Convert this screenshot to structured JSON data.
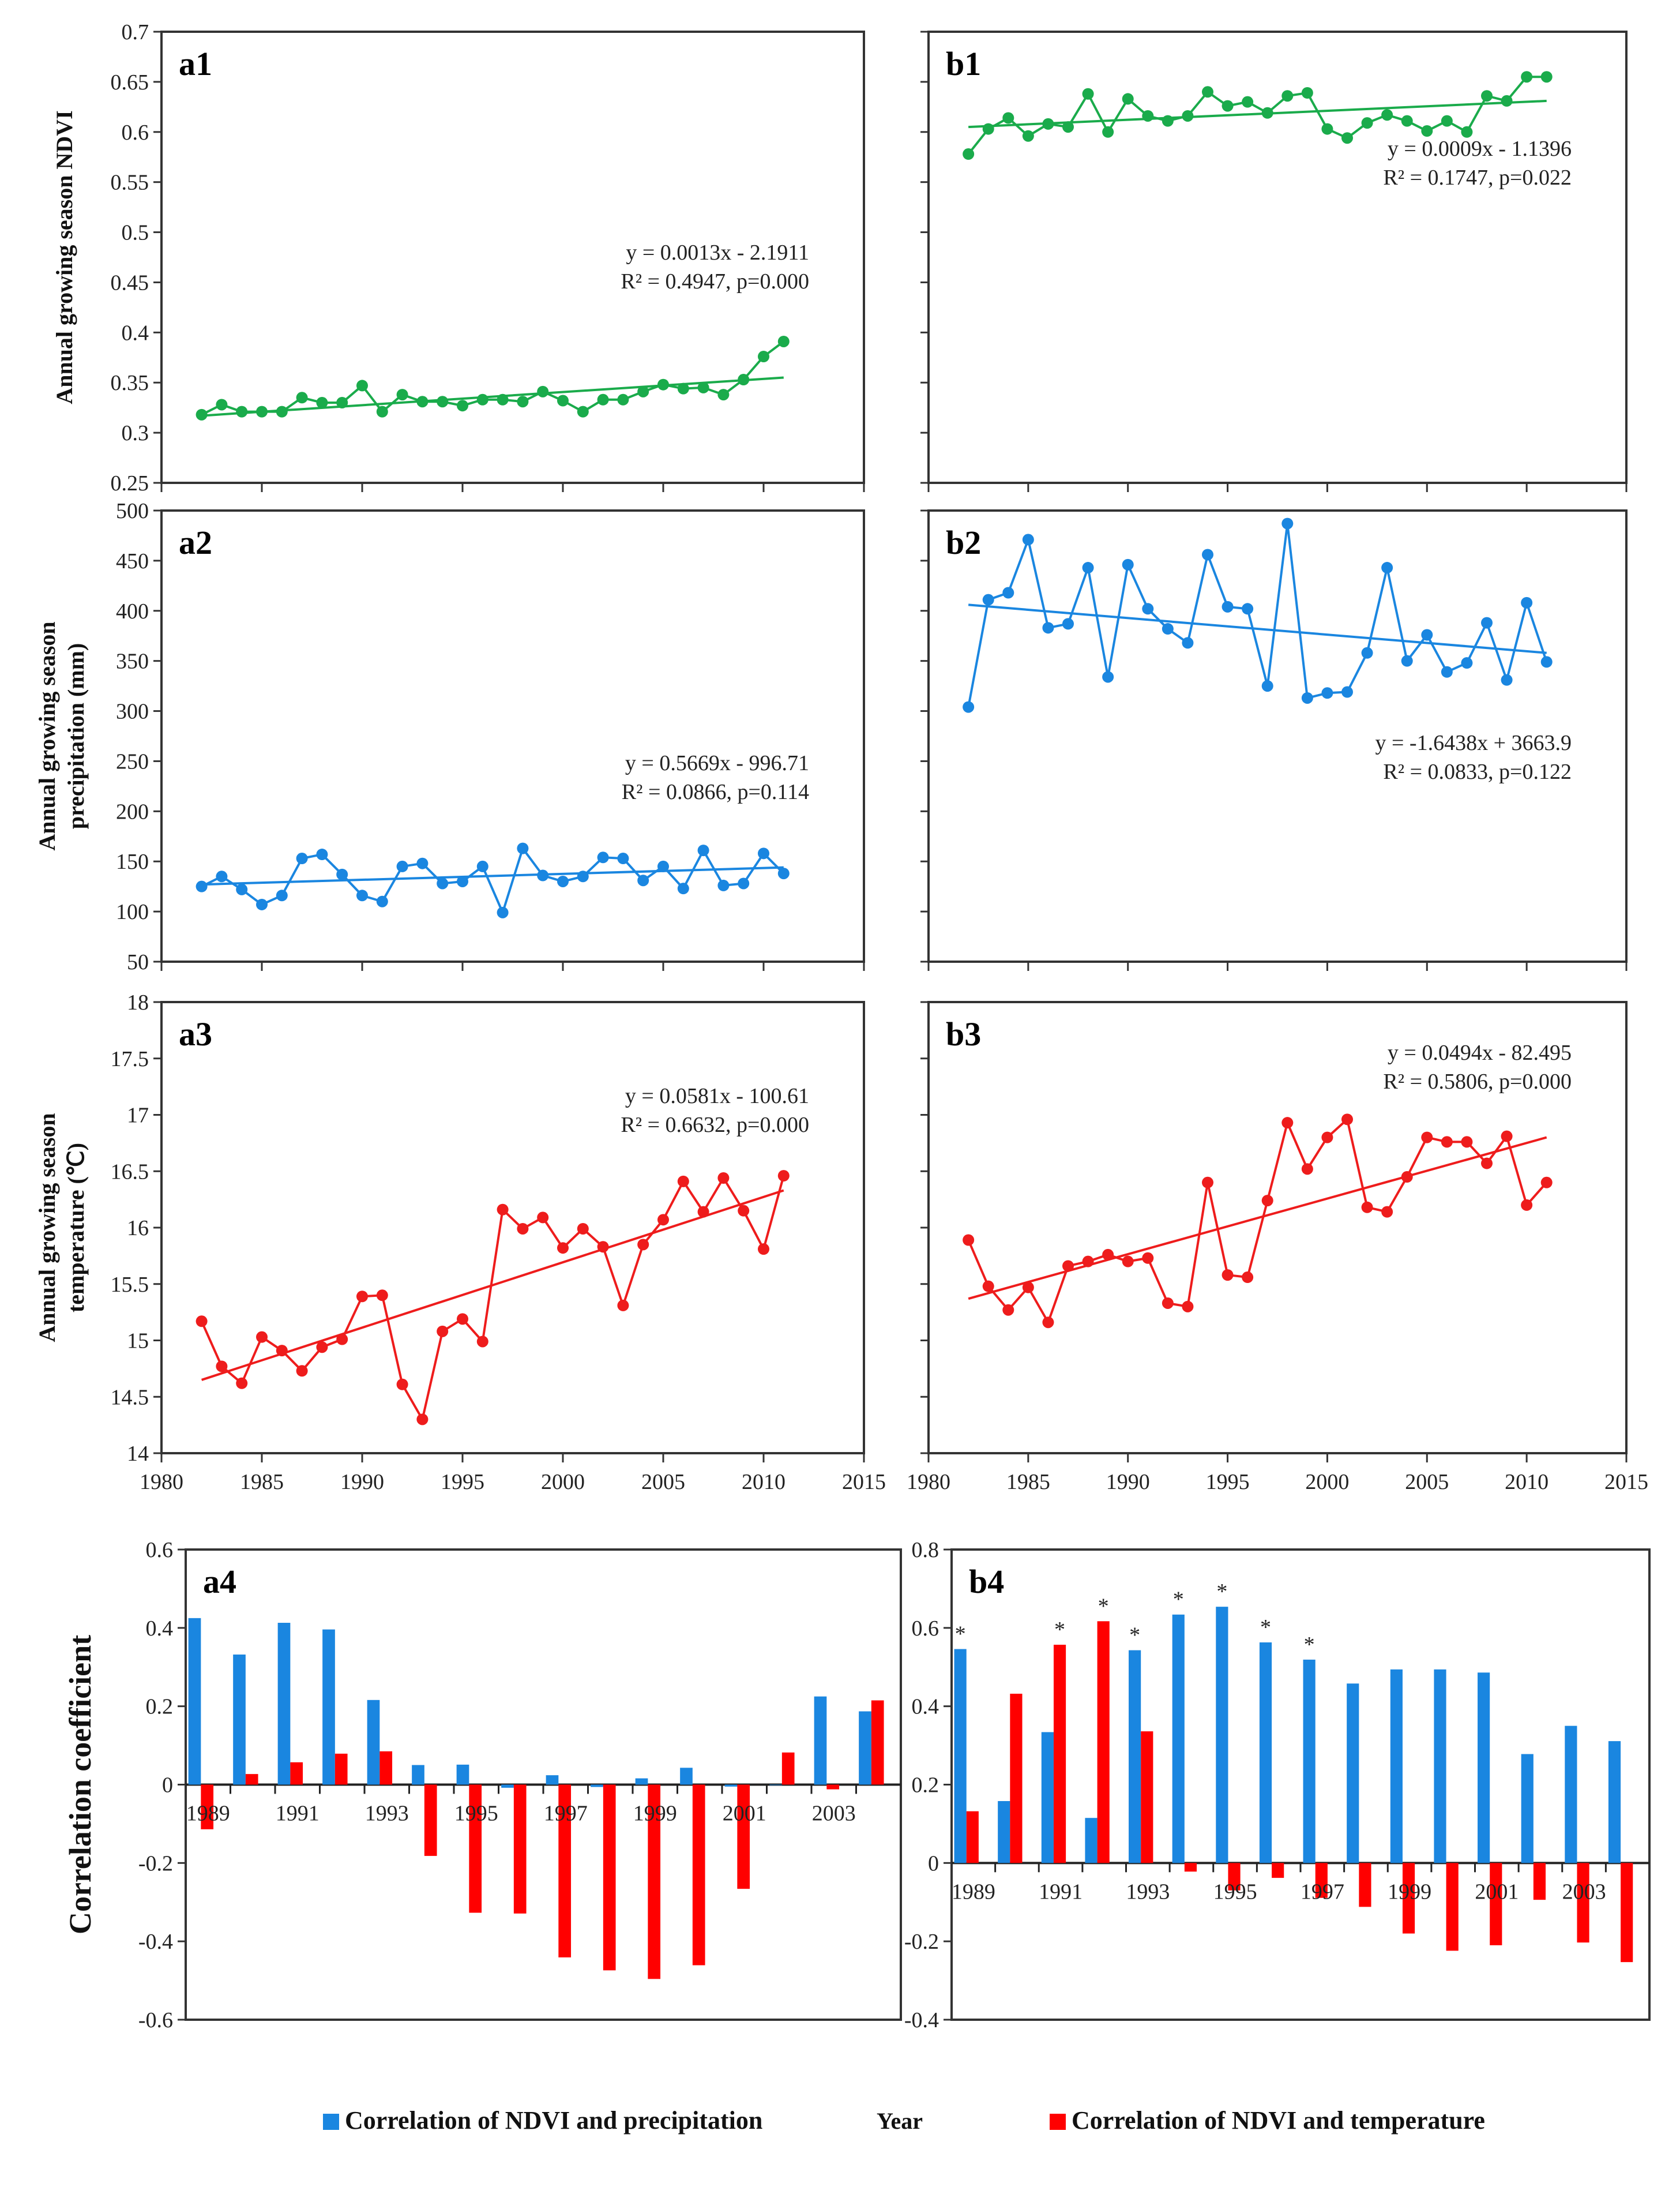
{
  "chart_data": [
    {
      "id": "a1",
      "type": "line",
      "label": "a1",
      "ylabel": "Annual growing season NDVI",
      "xlabel": "",
      "ylim": [
        0.25,
        0.7
      ],
      "yticks": [
        0.25,
        0.3,
        0.35,
        0.4,
        0.45,
        0.5,
        0.55,
        0.6,
        0.65,
        0.7
      ],
      "xlim": [
        1980,
        2015
      ],
      "xticks": [
        1980,
        1985,
        1990,
        1995,
        2000,
        2005,
        2010,
        2015
      ],
      "show_xtick_labels": false,
      "color": "#1aab4b",
      "x": [
        1982,
        1983,
        1984,
        1985,
        1986,
        1987,
        1988,
        1989,
        1990,
        1991,
        1992,
        1993,
        1994,
        1995,
        1996,
        1997,
        1998,
        1999,
        2000,
        2001,
        2002,
        2003,
        2004,
        2005,
        2006,
        2007,
        2008,
        2009,
        2010,
        2011
      ],
      "y": [
        0.318,
        0.328,
        0.321,
        0.321,
        0.321,
        0.335,
        0.33,
        0.33,
        0.347,
        0.321,
        0.338,
        0.331,
        0.331,
        0.327,
        0.333,
        0.333,
        0.331,
        0.341,
        0.332,
        0.321,
        0.333,
        0.333,
        0.341,
        0.348,
        0.344,
        0.345,
        0.338,
        0.353,
        0.376,
        0.391
      ],
      "trend": {
        "slope": 0.0013,
        "x0": 1982,
        "y0": 0.317,
        "x1": 2011,
        "y1": 0.355
      },
      "equation": "y = 0.0013x - 2.1911",
      "stats": "R² = 0.4947, p=0.000",
      "eq_pos": "right-middle"
    },
    {
      "id": "b1",
      "type": "line",
      "label": "b1",
      "ylabel": "",
      "xlabel": "",
      "ylim": [
        0.25,
        0.7
      ],
      "yticks": [
        0.25,
        0.3,
        0.35,
        0.4,
        0.45,
        0.5,
        0.55,
        0.6,
        0.65,
        0.7
      ],
      "show_ytick_labels": false,
      "xlim": [
        1980,
        2015
      ],
      "xticks": [
        1980,
        1985,
        1990,
        1995,
        2000,
        2005,
        2010,
        2015
      ],
      "show_xtick_labels": false,
      "color": "#1aab4b",
      "x": [
        1982,
        1983,
        1984,
        1985,
        1986,
        1987,
        1988,
        1989,
        1990,
        1991,
        1992,
        1993,
        1994,
        1995,
        1996,
        1997,
        1998,
        1999,
        2000,
        2001,
        2002,
        2003,
        2004,
        2005,
        2006,
        2007,
        2008,
        2009,
        2010,
        2011
      ],
      "y": [
        0.578,
        0.603,
        0.614,
        0.596,
        0.608,
        0.605,
        0.638,
        0.6,
        0.633,
        0.616,
        0.611,
        0.616,
        0.64,
        0.626,
        0.63,
        0.619,
        0.636,
        0.639,
        0.603,
        0.594,
        0.609,
        0.617,
        0.611,
        0.601,
        0.611,
        0.6,
        0.636,
        0.631,
        0.655,
        0.655
      ],
      "trend": {
        "slope": 0.0009,
        "x0": 1982,
        "y0": 0.605,
        "x1": 2011,
        "y1": 0.631
      },
      "equation": "y = 0.0009x - 1.1396",
      "stats": "R² = 0.1747, p=0.022",
      "eq_pos": "right-upper"
    },
    {
      "id": "a2",
      "type": "line",
      "label": "a2",
      "ylabel": "Annual growing season precipitation (mm)",
      "xlabel": "",
      "ylim": [
        50,
        500
      ],
      "yticks": [
        50,
        100,
        150,
        200,
        250,
        300,
        350,
        400,
        450,
        500
      ],
      "xlim": [
        1980,
        2015
      ],
      "xticks": [
        1980,
        1985,
        1990,
        1995,
        2000,
        2005,
        2010,
        2015
      ],
      "show_xtick_labels": false,
      "color": "#1a86e0",
      "x": [
        1982,
        1983,
        1984,
        1985,
        1986,
        1987,
        1988,
        1989,
        1990,
        1991,
        1992,
        1993,
        1994,
        1995,
        1996,
        1997,
        1998,
        1999,
        2000,
        2001,
        2002,
        2003,
        2004,
        2005,
        2006,
        2007,
        2008,
        2009,
        2010,
        2011
      ],
      "y": [
        125,
        135,
        122,
        107,
        116,
        153,
        157,
        137,
        116,
        110,
        145,
        148,
        128,
        130,
        145,
        99,
        163,
        136,
        130,
        135,
        154,
        153,
        131,
        145,
        123,
        161,
        126,
        128,
        158,
        138
      ],
      "trend": {
        "slope": 0.5669,
        "x0": 1982,
        "y0": 127,
        "x1": 2011,
        "y1": 144
      },
      "equation": "y = 0.5669x - 996.71",
      "stats": "R² = 0.0866, p=0.114",
      "eq_pos": "right-middle"
    },
    {
      "id": "b2",
      "type": "line",
      "label": "b2",
      "ylabel": "",
      "xlabel": "",
      "ylim": [
        50,
        500
      ],
      "yticks": [
        50,
        100,
        150,
        200,
        250,
        300,
        350,
        400,
        450,
        500
      ],
      "show_ytick_labels": false,
      "xlim": [
        1980,
        2015
      ],
      "xticks": [
        1980,
        1985,
        1990,
        1995,
        2000,
        2005,
        2010,
        2015
      ],
      "show_xtick_labels": false,
      "color": "#1a86e0",
      "x": [
        1982,
        1983,
        1984,
        1985,
        1986,
        1987,
        1988,
        1989,
        1990,
        1991,
        1992,
        1993,
        1994,
        1995,
        1996,
        1997,
        1998,
        1999,
        2000,
        2001,
        2002,
        2003,
        2004,
        2005,
        2006,
        2007,
        2008,
        2009,
        2010,
        2011
      ],
      "y": [
        304,
        411,
        418,
        471,
        383,
        387,
        443,
        334,
        446,
        402,
        382,
        368,
        456,
        404,
        402,
        325,
        487,
        313,
        318,
        319,
        358,
        443,
        350,
        376,
        339,
        348,
        388,
        331,
        408,
        349
      ],
      "trend": {
        "slope": -1.6438,
        "x0": 1982,
        "y0": 406,
        "x1": 2011,
        "y1": 358
      },
      "equation": "y = -1.6438x + 3663.9",
      "stats": "R² = 0.0833, p=0.122",
      "eq_pos": "right-middle"
    },
    {
      "id": "a3",
      "type": "line",
      "label": "a3",
      "ylabel": "Annual growing season temperature (℃)",
      "xlabel": "",
      "ylim": [
        14,
        18
      ],
      "yticks": [
        14,
        14.5,
        15,
        15.5,
        16,
        16.5,
        17,
        17.5,
        18
      ],
      "xlim": [
        1980,
        2015
      ],
      "xticks": [
        1980,
        1985,
        1990,
        1995,
        2000,
        2005,
        2010,
        2015
      ],
      "show_xtick_labels": true,
      "color": "#ee1c1c",
      "x": [
        1982,
        1983,
        1984,
        1985,
        1986,
        1987,
        1988,
        1989,
        1990,
        1991,
        1992,
        1993,
        1994,
        1995,
        1996,
        1997,
        1998,
        1999,
        2000,
        2001,
        2002,
        2003,
        2004,
        2005,
        2006,
        2007,
        2008,
        2009,
        2010,
        2011
      ],
      "y": [
        15.17,
        14.77,
        14.62,
        15.03,
        14.91,
        14.73,
        14.94,
        15.01,
        15.39,
        15.4,
        14.61,
        14.3,
        15.08,
        15.19,
        14.99,
        16.16,
        15.99,
        16.09,
        15.82,
        15.99,
        15.83,
        15.31,
        15.85,
        16.07,
        16.41,
        16.14,
        16.44,
        16.15,
        15.81,
        16.46
      ],
      "trend": {
        "slope": 0.0581,
        "x0": 1982,
        "y0": 14.65,
        "x1": 2011,
        "y1": 16.33
      },
      "equation": "y = 0.0581x - 100.61",
      "stats": "R² = 0.6632, p=0.000",
      "eq_pos": "right-upper"
    },
    {
      "id": "b3",
      "type": "line",
      "label": "b3",
      "ylabel": "",
      "xlabel": "",
      "ylim": [
        14,
        18
      ],
      "yticks": [
        14,
        14.5,
        15,
        15.5,
        16,
        16.5,
        17,
        17.5,
        18
      ],
      "show_ytick_labels": false,
      "xlim": [
        1980,
        2015
      ],
      "xticks": [
        1980,
        1985,
        1990,
        1995,
        2000,
        2005,
        2010,
        2015
      ],
      "show_xtick_labels": true,
      "color": "#ee1c1c",
      "x": [
        1982,
        1983,
        1984,
        1985,
        1986,
        1987,
        1988,
        1989,
        1990,
        1991,
        1992,
        1993,
        1994,
        1995,
        1996,
        1997,
        1998,
        1999,
        2000,
        2001,
        2002,
        2003,
        2004,
        2005,
        2006,
        2007,
        2008,
        2009,
        2010,
        2011
      ],
      "y": [
        15.89,
        15.48,
        15.27,
        15.47,
        15.16,
        15.66,
        15.7,
        15.76,
        15.7,
        15.73,
        15.33,
        15.3,
        16.4,
        15.58,
        15.56,
        16.24,
        16.93,
        16.52,
        16.8,
        16.96,
        16.18,
        16.14,
        16.45,
        16.8,
        16.76,
        16.76,
        16.57,
        16.81,
        16.2,
        16.4
      ],
      "trend": {
        "slope": 0.0494,
        "x0": 1982,
        "y0": 15.37,
        "x1": 2011,
        "y1": 16.8
      },
      "equation": "y = 0.0494x - 82.495",
      "stats": "R² = 0.5806, p=0.000",
      "eq_pos": "right-top"
    },
    {
      "id": "a4",
      "type": "bar",
      "label": "a4",
      "ylabel": "Correlation coefficient",
      "ylim": [
        -0.6,
        0.6
      ],
      "yticks": [
        -0.6,
        -0.4,
        -0.2,
        0,
        0.2,
        0.4,
        0.6
      ],
      "categories": [
        "1989",
        "1990",
        "1991",
        "1992",
        "1993",
        "1994",
        "1995",
        "1996",
        "1997",
        "1998",
        "1999",
        "2000",
        "2001",
        "2002",
        "2003",
        "2004"
      ],
      "category_labels_shown": [
        "1989",
        "",
        "1991",
        "",
        "1993",
        "",
        "1995",
        "",
        "1997",
        "",
        "1999",
        "",
        "2001",
        "",
        "2003",
        ""
      ],
      "series": [
        {
          "name": "Correlation of NDVI and precipitation",
          "color": "#1a86e0",
          "values": [
            0.425,
            0.332,
            0.413,
            0.396,
            0.216,
            0.05,
            0.051,
            -0.008,
            0.024,
            -0.006,
            0.016,
            0.043,
            -0.005,
            0.0,
            0.225,
            0.187
          ]
        },
        {
          "name": "Correlation of NDVI and temperature",
          "color": "#ff0000",
          "values": [
            -0.114,
            0.027,
            0.057,
            0.079,
            0.085,
            -0.182,
            -0.327,
            -0.329,
            -0.441,
            -0.474,
            -0.496,
            -0.461,
            -0.266,
            0.082,
            -0.012,
            0.215
          ]
        }
      ],
      "significant": []
    },
    {
      "id": "b4",
      "type": "bar",
      "label": "b4",
      "ylabel": "",
      "ylim": [
        -0.4,
        0.8
      ],
      "yticks": [
        -0.4,
        -0.2,
        0,
        0.2,
        0.4,
        0.6,
        0.8
      ],
      "categories": [
        "1989",
        "1990",
        "1991",
        "1992",
        "1993",
        "1994",
        "1995",
        "1996",
        "1997",
        "1998",
        "1999",
        "2000",
        "2001",
        "2002",
        "2003",
        "2004"
      ],
      "category_labels_shown": [
        "1989",
        "",
        "1991",
        "",
        "1993",
        "",
        "1995",
        "",
        "1997",
        "",
        "1999",
        "",
        "2001",
        "",
        "2003",
        ""
      ],
      "series": [
        {
          "name": "Correlation of NDVI and precipitation",
          "color": "#1a86e0",
          "values": [
            0.546,
            0.158,
            0.334,
            0.115,
            0.543,
            0.634,
            0.654,
            0.563,
            0.519,
            0.458,
            0.494,
            0.494,
            0.486,
            0.278,
            0.35,
            0.311
          ]
        },
        {
          "name": "Correlation of NDVI and temperature",
          "color": "#ff0000",
          "values": [
            0.132,
            0.432,
            0.557,
            0.617,
            0.336,
            -0.022,
            -0.07,
            -0.038,
            -0.089,
            -0.112,
            -0.18,
            -0.224,
            -0.21,
            -0.094,
            -0.203,
            -0.253
          ]
        }
      ],
      "significant": [
        {
          "category": "1989",
          "series": 0
        },
        {
          "category": "1991",
          "series": 1
        },
        {
          "category": "1992",
          "series": 1
        },
        {
          "category": "1993",
          "series": 0
        },
        {
          "category": "1994",
          "series": 0
        },
        {
          "category": "1995",
          "series": 0
        },
        {
          "category": "1996",
          "series": 0
        },
        {
          "category": "1997",
          "series": 0
        }
      ],
      "significance_marker": "*"
    }
  ],
  "legend": {
    "items": [
      {
        "label": "Correlation of NDVI and precipitation",
        "color": "#1a86e0"
      },
      {
        "label": "Correlation of NDVI and temperature",
        "color": "#ff0000"
      }
    ],
    "center_label": "Year",
    "placement": "bottom"
  }
}
